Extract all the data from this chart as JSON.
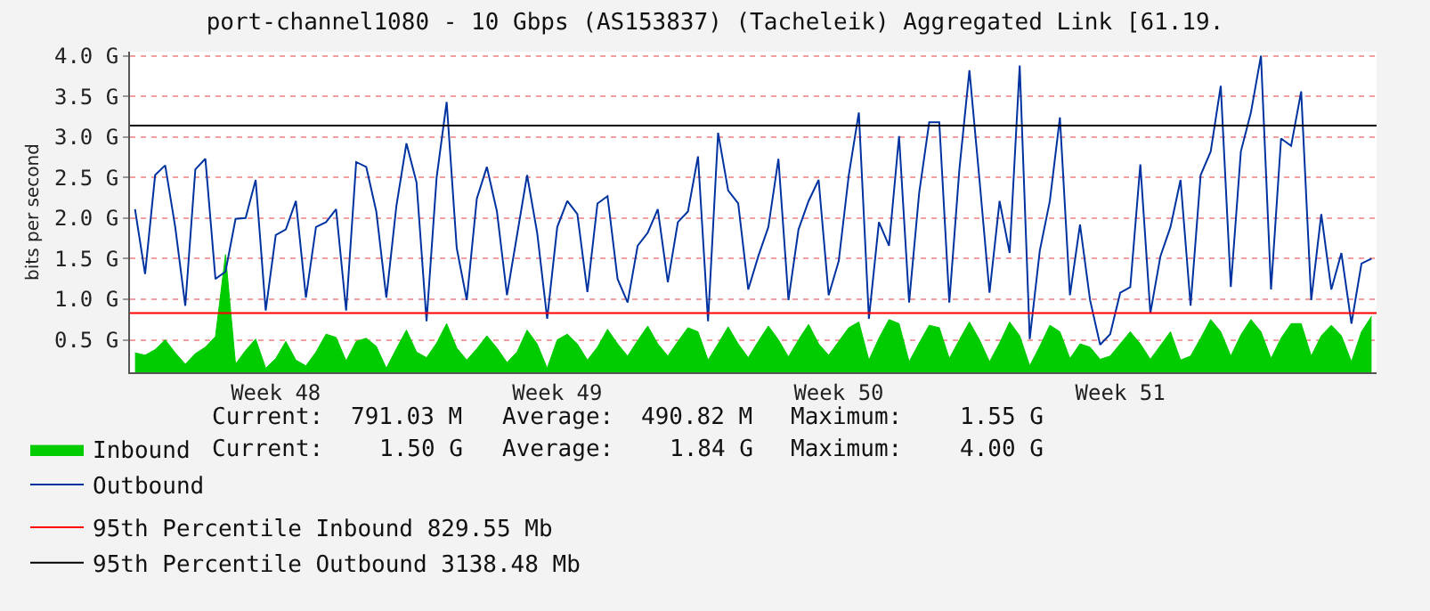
{
  "chart_data": {
    "type": "line",
    "title": "port-channel1080 - 10 Gbps (AS153837) (Tacheleik) Aggregated Link [61.19.",
    "ylabel": "bits per second",
    "categories": [
      null,
      null,
      null,
      null,
      null,
      null,
      null,
      null,
      null,
      null,
      null,
      null,
      null,
      null,
      "Week 48",
      null,
      null,
      null,
      null,
      null,
      null,
      null,
      null,
      null,
      null,
      null,
      null,
      null,
      null,
      null,
      null,
      null,
      null,
      null,
      null,
      null,
      null,
      null,
      null,
      null,
      null,
      null,
      "Week 49",
      null,
      null,
      null,
      null,
      null,
      null,
      null,
      null,
      null,
      null,
      null,
      null,
      null,
      null,
      null,
      null,
      null,
      null,
      null,
      null,
      null,
      null,
      null,
      null,
      null,
      null,
      null,
      "Week 50",
      null,
      null,
      null,
      null,
      null,
      null,
      null,
      null,
      null,
      null,
      null,
      null,
      null,
      null,
      null,
      null,
      null,
      null,
      null,
      null,
      null,
      null,
      null,
      null,
      null,
      null,
      null,
      "Week 51",
      null,
      null,
      null,
      null,
      null,
      null,
      null,
      null,
      null,
      null,
      null,
      null,
      null,
      null,
      null,
      null,
      null,
      null,
      null,
      null,
      null,
      null,
      null,
      null,
      null
    ],
    "ylim": [
      0.1,
      4.05
    ],
    "yticks": [
      {
        "value": 0.5,
        "label": "0.5 G"
      },
      {
        "value": 1.0,
        "label": "1.0 G"
      },
      {
        "value": 1.5,
        "label": "1.5 G"
      },
      {
        "value": 2.0,
        "label": "2.0 G"
      },
      {
        "value": 2.5,
        "label": "2.5 G"
      },
      {
        "value": 3.0,
        "label": "3.0 G"
      },
      {
        "value": 3.5,
        "label": "3.5 G"
      },
      {
        "value": 4.0,
        "label": "4.0 G"
      }
    ],
    "grid": "y",
    "legend": "bottom left",
    "series": [
      {
        "name": "Inbound",
        "type": "area",
        "color": "#00cc00",
        "values": [
          0.34,
          0.31,
          0.38,
          0.5,
          0.34,
          0.2,
          0.33,
          0.41,
          0.54,
          1.55,
          0.2,
          0.37,
          0.51,
          0.15,
          0.27,
          0.48,
          0.25,
          0.18,
          0.35,
          0.57,
          0.53,
          0.24,
          0.48,
          0.52,
          0.42,
          0.15,
          0.39,
          0.62,
          0.35,
          0.28,
          0.46,
          0.7,
          0.4,
          0.25,
          0.39,
          0.55,
          0.4,
          0.22,
          0.35,
          0.62,
          0.45,
          0.15,
          0.5,
          0.57,
          0.45,
          0.25,
          0.41,
          0.63,
          0.45,
          0.3,
          0.49,
          0.67,
          0.45,
          0.3,
          0.48,
          0.65,
          0.6,
          0.25,
          0.45,
          0.66,
          0.45,
          0.28,
          0.48,
          0.67,
          0.5,
          0.29,
          0.5,
          0.69,
          0.45,
          0.31,
          0.48,
          0.65,
          0.72,
          0.25,
          0.52,
          0.75,
          0.7,
          0.23,
          0.46,
          0.68,
          0.65,
          0.27,
          0.5,
          0.72,
          0.5,
          0.23,
          0.46,
          0.72,
          0.55,
          0.18,
          0.42,
          0.68,
          0.6,
          0.27,
          0.45,
          0.41,
          0.26,
          0.3,
          0.45,
          0.6,
          0.45,
          0.26,
          0.43,
          0.6,
          0.25,
          0.3,
          0.52,
          0.75,
          0.6,
          0.3,
          0.56,
          0.75,
          0.6,
          0.27,
          0.52,
          0.7,
          0.7,
          0.3,
          0.55,
          0.68,
          0.55,
          0.23,
          0.6,
          0.79
        ]
      },
      {
        "name": "Outbound",
        "color": "#0033a0",
        "values": [
          2.11,
          1.31,
          2.53,
          2.65,
          1.89,
          0.92,
          2.6,
          2.73,
          1.25,
          1.34,
          1.99,
          2.0,
          2.47,
          0.86,
          1.79,
          1.86,
          2.21,
          1.02,
          1.89,
          1.95,
          2.11,
          0.86,
          2.69,
          2.63,
          2.08,
          1.02,
          2.15,
          2.92,
          2.44,
          0.73,
          2.5,
          3.43,
          1.63,
          0.99,
          2.24,
          2.63,
          2.08,
          1.05,
          1.79,
          2.53,
          1.82,
          0.76,
          1.89,
          2.21,
          2.05,
          1.09,
          2.18,
          2.27,
          1.25,
          0.96,
          1.66,
          1.82,
          2.11,
          1.21,
          1.95,
          2.08,
          2.76,
          0.73,
          3.05,
          2.34,
          2.18,
          1.12,
          1.53,
          1.89,
          2.73,
          0.99,
          1.86,
          2.21,
          2.47,
          1.05,
          1.47,
          2.53,
          3.3,
          0.76,
          1.95,
          1.66,
          3.01,
          0.96,
          2.31,
          3.18,
          3.18,
          0.96,
          2.6,
          3.82,
          2.47,
          1.08,
          2.21,
          1.57,
          3.88,
          0.51,
          1.6,
          2.21,
          3.24,
          1.05,
          1.92,
          0.99,
          0.44,
          0.57,
          1.08,
          1.15,
          2.66,
          0.83,
          1.53,
          1.89,
          2.47,
          0.92,
          2.53,
          2.82,
          3.63,
          1.15,
          2.82,
          3.3,
          4.0,
          1.12,
          2.98,
          2.89,
          3.56,
          0.99,
          2.05,
          1.12,
          1.57,
          0.7,
          1.44,
          1.5
        ]
      }
    ],
    "ref_lines": [
      {
        "axis": "y",
        "value": 0.82955,
        "label": "95th Percentile Inbound 829.55 Mb",
        "color": "#ff0000"
      },
      {
        "axis": "y",
        "value": 3.13848,
        "label": "95th Percentile Outbound 3138.48 Mb",
        "color": "#000000"
      }
    ],
    "annotations": [
      "Current:",
      "791.03 M",
      "Average:",
      "490.82 M",
      "Maximum:",
      "1.55 G",
      "Current:",
      "1.50 G",
      "Average:",
      "1.84 G",
      "Maximum:",
      "4.00 G"
    ]
  }
}
